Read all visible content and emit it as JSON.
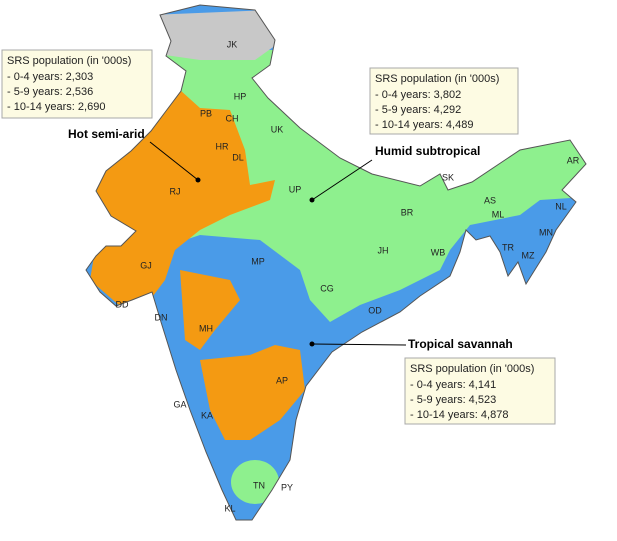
{
  "map": {
    "state_labels": [
      "JK",
      "HP",
      "PB",
      "CH",
      "UK",
      "HR",
      "DL",
      "RJ",
      "UP",
      "GJ",
      "DD",
      "MP",
      "BR",
      "JH",
      "WB",
      "SK",
      "AS",
      "AR",
      "NL",
      "ML",
      "MN",
      "TR",
      "MZ",
      "CG",
      "OD",
      "MH",
      "DN",
      "AP",
      "KA",
      "GA",
      "TN",
      "PY",
      "KL"
    ],
    "climate_zones": [
      {
        "label": "Hot semi-arid",
        "srs_box": {
          "heading": "SRS population (in '000s)",
          "lines": [
            "- 0-4 years: 2,303",
            "- 5-9 years: 2,536",
            "- 10-14 years: 2,690"
          ]
        }
      },
      {
        "label": "Humid subtropical",
        "srs_box": {
          "heading": "SRS population (in '000s)",
          "lines": [
            "- 0-4 years: 3,802",
            "- 5-9 years: 4,292",
            "- 10-14 years: 4,489"
          ]
        }
      },
      {
        "label": "Tropical savannah",
        "srs_box": {
          "heading": "SRS population (in '000s)",
          "lines": [
            "- 0-4 years: 4,141",
            "- 5-9 years: 4,523",
            "- 10-14 years: 4,878"
          ]
        }
      }
    ]
  }
}
